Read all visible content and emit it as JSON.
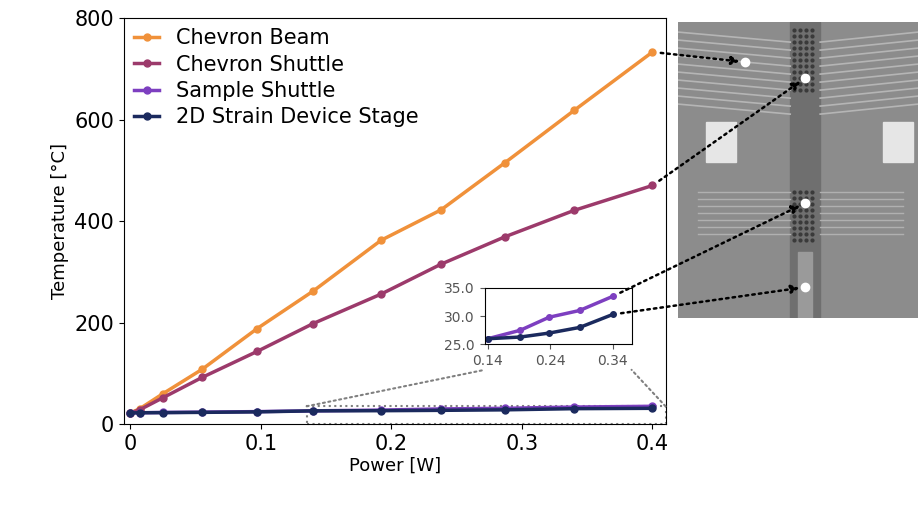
{
  "chart_data": [
    {
      "type": "line",
      "x": [
        0,
        0.007,
        0.025,
        0.055,
        0.097,
        0.14,
        0.192,
        0.238,
        0.287,
        0.34,
        0.4
      ],
      "x_label": "Power [W]",
      "y_label": "Temperature [°C]",
      "xlim": [
        -0.005,
        0.41
      ],
      "xticks": [
        0,
        0.1,
        0.2,
        0.3,
        0.4
      ],
      "ylim": [
        0,
        800
      ],
      "yticks": [
        0,
        200,
        400,
        600,
        800
      ],
      "legend": "upper left",
      "marker": "o",
      "line_style": "solid",
      "series": [
        {
          "name": "Chevron Beam",
          "color": "#f0913a",
          "values": [
            22,
            30,
            60,
            108,
            188,
            262,
            362,
            422,
            515,
            618,
            733
          ]
        },
        {
          "name": "Chevron Shuttle",
          "color": "#9c3a6b",
          "values": [
            22,
            28,
            52,
            92,
            143,
            198,
            256,
            315,
            369,
            421,
            470
          ]
        },
        {
          "name": "Sample Shuttle",
          "color": "#7d3fc0",
          "values": [
            22,
            22.3,
            22.8,
            23.5,
            24.5,
            26,
            27.5,
            29.8,
            31,
            33.5,
            35
          ]
        },
        {
          "name": "2D Strain Device Stage",
          "color": "#1b2a5e",
          "values": [
            22,
            22.2,
            22.5,
            23,
            24,
            26,
            26.3,
            27,
            28,
            30.3,
            31
          ]
        }
      ]
    },
    {
      "type": "line",
      "x": [
        0.14,
        0.192,
        0.238,
        0.287,
        0.34
      ],
      "xlim": [
        0.135,
        0.37
      ],
      "xticks": [
        0.14,
        0.24,
        0.34
      ],
      "ylim": [
        25,
        35
      ],
      "yticks": [
        {
          "value": 25,
          "label": "25.0"
        },
        {
          "value": 30,
          "label": "30.0"
        },
        {
          "value": 35,
          "label": "35.0"
        }
      ],
      "marker": "o",
      "line_style": "solid",
      "series": [
        {
          "name": "Sample Shuttle",
          "color": "#7d3fc0",
          "values": [
            26,
            27.5,
            29.8,
            31,
            33.5
          ]
        },
        {
          "name": "2D Strain Device Stage",
          "color": "#1b2a5e",
          "values": [
            26,
            26.3,
            27,
            28,
            30.3
          ]
        }
      ]
    }
  ]
}
